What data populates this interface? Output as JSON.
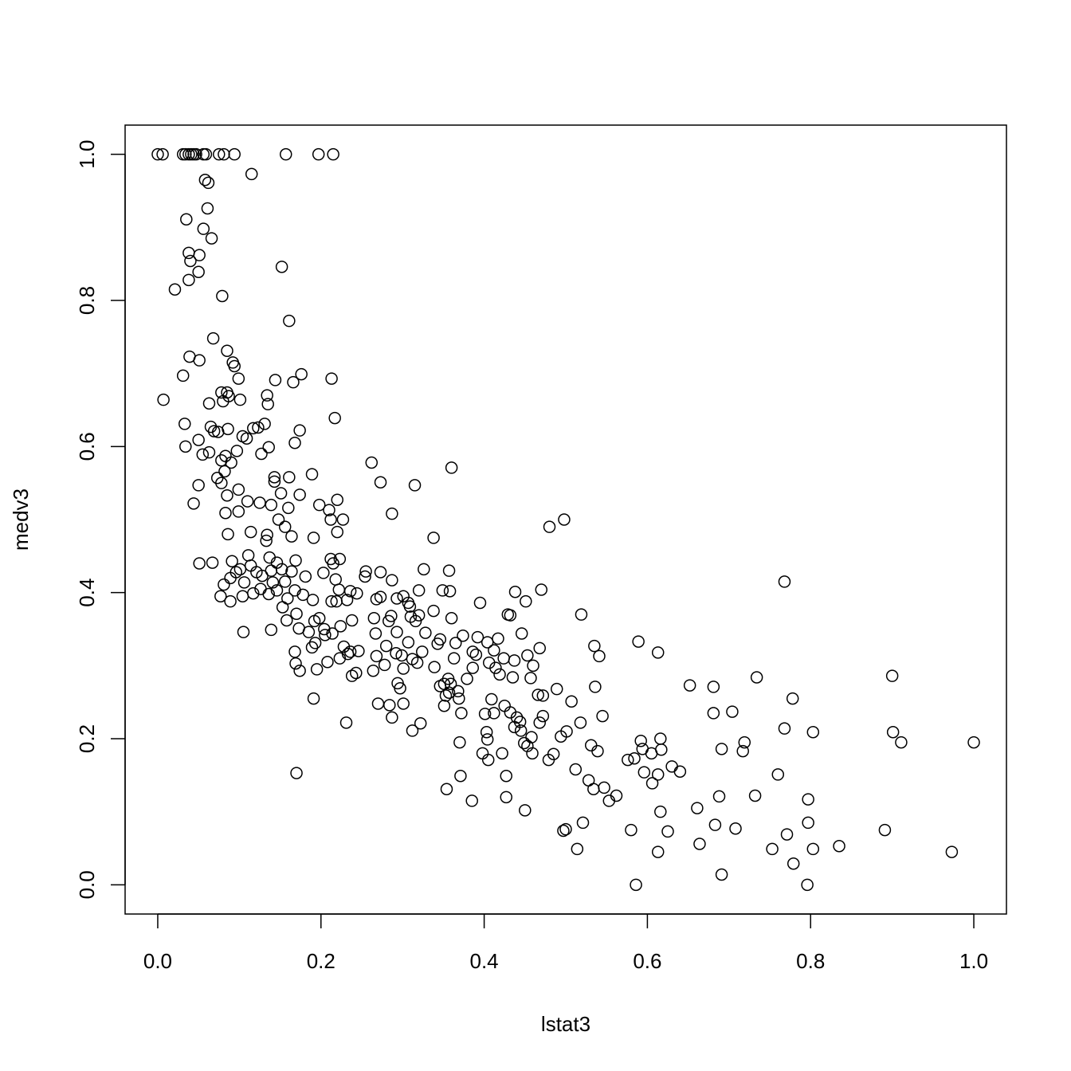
{
  "chart_data": {
    "type": "scatter",
    "xlabel": "lstat3",
    "ylabel": "medv3",
    "xlim": [
      -0.04,
      1.04
    ],
    "ylim": [
      -0.04,
      1.04
    ],
    "xticks": [
      {
        "value": 0,
        "label": "0.0"
      },
      0.2,
      0.4,
      0.6,
      0.8,
      {
        "value": 1,
        "label": "1.0"
      }
    ],
    "yticks": [
      {
        "value": 0,
        "label": "0.0"
      },
      0.2,
      0.4,
      0.6,
      0.8,
      {
        "value": 1,
        "label": "1.0"
      }
    ],
    "color": "#000000",
    "x": [
      0.0,
      0.006,
      0.031,
      0.034,
      0.038,
      0.041,
      0.044,
      0.047,
      0.056,
      0.059,
      0.075,
      0.081,
      0.094,
      0.157,
      0.197,
      0.215,
      0.115,
      0.058,
      0.062,
      0.061,
      0.056,
      0.035,
      0.066,
      0.038,
      0.051,
      0.04,
      0.152,
      0.05,
      0.038,
      0.021,
      0.079,
      0.161,
      0.068,
      0.085,
      0.039,
      0.051,
      0.092,
      0.094,
      0.031,
      0.176,
      0.099,
      0.213,
      0.144,
      0.166,
      0.078,
      0.085,
      0.087,
      0.134,
      0.101,
      0.007,
      0.135,
      0.08,
      0.063,
      0.217,
      0.131,
      0.033,
      0.123,
      0.117,
      0.065,
      0.069,
      0.086,
      0.074,
      0.174,
      0.104,
      0.109,
      0.05,
      0.168,
      0.034,
      0.136,
      0.097,
      0.127,
      0.063,
      0.055,
      0.083,
      0.078,
      0.262,
      0.09,
      0.36,
      0.082,
      0.073,
      0.143,
      0.161,
      0.189,
      0.143,
      0.078,
      0.273,
      0.315,
      0.05,
      0.099,
      0.151,
      0.174,
      0.085,
      0.22,
      0.11,
      0.125,
      0.044,
      0.198,
      0.139,
      0.16,
      0.21,
      0.099,
      0.083,
      0.287,
      0.148,
      0.227,
      0.498,
      0.212,
      0.48,
      0.156,
      0.114,
      0.086,
      0.22,
      0.134,
      0.164,
      0.338,
      0.191,
      0.133,
      0.051,
      0.111,
      0.137,
      0.223,
      0.212,
      0.091,
      0.169,
      0.215,
      0.146,
      0.067,
      0.114,
      0.101,
      0.152,
      0.139,
      0.096,
      0.121,
      0.255,
      0.273,
      0.357,
      0.326,
      0.203,
      0.164,
      0.181,
      0.128,
      0.254,
      0.768,
      0.287,
      0.089,
      0.106,
      0.141,
      0.156,
      0.218,
      0.222,
      0.236,
      0.081,
      0.126,
      0.146,
      0.168,
      0.244,
      0.273,
      0.301,
      0.438,
      0.47,
      0.32,
      0.349,
      0.358,
      0.395,
      0.451,
      0.077,
      0.104,
      0.117,
      0.136,
      0.089,
      0.159,
      0.19,
      0.219,
      0.232,
      0.268,
      0.293,
      0.307,
      0.309,
      0.178,
      0.213,
      0.338,
      0.432,
      0.519,
      0.429,
      0.36,
      0.32,
      0.286,
      0.31,
      0.17,
      0.198,
      0.153,
      0.158,
      0.192,
      0.238,
      0.265,
      0.283,
      0.316,
      0.173,
      0.185,
      0.204,
      0.374,
      0.392,
      0.446,
      0.105,
      0.139,
      0.224,
      0.205,
      0.214,
      0.267,
      0.293,
      0.328,
      0.417,
      0.404,
      0.346,
      0.343,
      0.365,
      0.535,
      0.589,
      0.28,
      0.307,
      0.189,
      0.193,
      0.168,
      0.228,
      0.236,
      0.246,
      0.324,
      0.386,
      0.412,
      0.613,
      0.541,
      0.453,
      0.468,
      0.268,
      0.299,
      0.312,
      0.233,
      0.208,
      0.169,
      0.223,
      0.292,
      0.318,
      0.363,
      0.39,
      0.406,
      0.424,
      0.437,
      0.174,
      0.195,
      0.339,
      0.386,
      0.414,
      0.419,
      0.46,
      0.457,
      0.264,
      0.278,
      0.301,
      0.243,
      0.238,
      0.379,
      0.356,
      0.435,
      0.536,
      0.359,
      0.351,
      0.357,
      0.489,
      0.652,
      0.681,
      0.734,
      0.9,
      0.466,
      0.346,
      0.353,
      0.368,
      0.369,
      0.294,
      0.297,
      0.191,
      0.409,
      0.425,
      0.432,
      0.27,
      0.284,
      0.301,
      0.507,
      0.472,
      0.351,
      0.372,
      0.518,
      0.287,
      0.322,
      0.231,
      0.437,
      0.444,
      0.44,
      0.412,
      0.401,
      0.545,
      0.472,
      0.468,
      0.681,
      0.704,
      0.778,
      0.768,
      0.803,
      0.901,
      0.911,
      1.0,
      0.501,
      0.312,
      0.403,
      0.445,
      0.458,
      0.592,
      0.616,
      0.719,
      0.691,
      0.717,
      0.594,
      0.617,
      0.531,
      0.539,
      0.494,
      0.37,
      0.404,
      0.398,
      0.405,
      0.422,
      0.449,
      0.453,
      0.459,
      0.485,
      0.479,
      0.605,
      0.576,
      0.584,
      0.63,
      0.64,
      0.596,
      0.613,
      0.76,
      0.606,
      0.512,
      0.528,
      0.17,
      0.371,
      0.427,
      0.354,
      0.534,
      0.547,
      0.562,
      0.553,
      0.688,
      0.732,
      0.797,
      0.385,
      0.427,
      0.661,
      0.45,
      0.616,
      0.521,
      0.683,
      0.797,
      0.5,
      0.497,
      0.58,
      0.625,
      0.708,
      0.771,
      0.891,
      0.664,
      0.835,
      0.753,
      0.803,
      0.514,
      0.613,
      0.973,
      0.779,
      0.691,
      0.586,
      0.796
    ],
    "values": [
      1.0,
      1.0,
      1.0,
      1.0,
      1.0,
      1.0,
      1.0,
      1.0,
      1.0,
      1.0,
      1.0,
      1.0,
      1.0,
      1.0,
      1.0,
      1.0,
      0.973,
      0.965,
      0.961,
      0.926,
      0.898,
      0.911,
      0.885,
      0.865,
      0.862,
      0.854,
      0.846,
      0.839,
      0.828,
      0.815,
      0.806,
      0.772,
      0.748,
      0.731,
      0.723,
      0.718,
      0.715,
      0.71,
      0.697,
      0.699,
      0.693,
      0.693,
      0.691,
      0.688,
      0.674,
      0.674,
      0.669,
      0.67,
      0.664,
      0.664,
      0.658,
      0.662,
      0.659,
      0.639,
      0.631,
      0.631,
      0.626,
      0.625,
      0.627,
      0.621,
      0.624,
      0.62,
      0.622,
      0.614,
      0.611,
      0.609,
      0.605,
      0.6,
      0.599,
      0.594,
      0.59,
      0.592,
      0.589,
      0.587,
      0.581,
      0.578,
      0.578,
      0.571,
      0.566,
      0.557,
      0.558,
      0.558,
      0.562,
      0.552,
      0.55,
      0.551,
      0.547,
      0.547,
      0.541,
      0.536,
      0.534,
      0.533,
      0.527,
      0.525,
      0.523,
      0.522,
      0.52,
      0.52,
      0.516,
      0.513,
      0.511,
      0.509,
      0.508,
      0.5,
      0.5,
      0.5,
      0.5,
      0.49,
      0.49,
      0.483,
      0.48,
      0.483,
      0.479,
      0.477,
      0.475,
      0.475,
      0.471,
      0.44,
      0.451,
      0.448,
      0.446,
      0.446,
      0.443,
      0.444,
      0.44,
      0.441,
      0.441,
      0.437,
      0.432,
      0.432,
      0.43,
      0.428,
      0.428,
      0.429,
      0.428,
      0.43,
      0.432,
      0.427,
      0.429,
      0.422,
      0.423,
      0.422,
      0.415,
      0.417,
      0.42,
      0.414,
      0.414,
      0.415,
      0.418,
      0.404,
      0.402,
      0.411,
      0.405,
      0.403,
      0.403,
      0.399,
      0.394,
      0.395,
      0.401,
      0.404,
      0.403,
      0.403,
      0.402,
      0.386,
      0.388,
      0.395,
      0.395,
      0.399,
      0.398,
      0.388,
      0.392,
      0.39,
      0.388,
      0.39,
      0.391,
      0.392,
      0.386,
      0.381,
      0.397,
      0.388,
      0.375,
      0.369,
      0.37,
      0.37,
      0.365,
      0.369,
      0.368,
      0.367,
      0.371,
      0.365,
      0.38,
      0.362,
      0.361,
      0.362,
      0.365,
      0.361,
      0.361,
      0.351,
      0.346,
      0.35,
      0.341,
      0.339,
      0.344,
      0.346,
      0.349,
      0.354,
      0.342,
      0.344,
      0.344,
      0.346,
      0.345,
      0.337,
      0.332,
      0.336,
      0.33,
      0.331,
      0.327,
      0.333,
      0.327,
      0.332,
      0.325,
      0.331,
      0.319,
      0.326,
      0.319,
      0.32,
      0.319,
      0.319,
      0.321,
      0.318,
      0.313,
      0.314,
      0.324,
      0.313,
      0.314,
      0.309,
      0.316,
      0.305,
      0.303,
      0.31,
      0.317,
      0.304,
      0.31,
      0.315,
      0.304,
      0.31,
      0.307,
      0.293,
      0.295,
      0.298,
      0.297,
      0.297,
      0.288,
      0.3,
      0.283,
      0.293,
      0.301,
      0.296,
      0.29,
      0.286,
      0.282,
      0.282,
      0.284,
      0.271,
      0.275,
      0.275,
      0.263,
      0.268,
      0.273,
      0.271,
      0.284,
      0.286,
      0.26,
      0.272,
      0.259,
      0.265,
      0.255,
      0.276,
      0.269,
      0.255,
      0.254,
      0.245,
      0.236,
      0.248,
      0.246,
      0.248,
      0.251,
      0.259,
      0.245,
      0.235,
      0.222,
      0.229,
      0.221,
      0.222,
      0.216,
      0.223,
      0.229,
      0.235,
      0.234,
      0.231,
      0.231,
      0.222,
      0.235,
      0.237,
      0.255,
      0.214,
      0.209,
      0.209,
      0.195,
      0.195,
      0.21,
      0.211,
      0.209,
      0.211,
      0.202,
      0.197,
      0.2,
      0.195,
      0.186,
      0.183,
      0.186,
      0.185,
      0.191,
      0.183,
      0.203,
      0.195,
      0.199,
      0.18,
      0.171,
      0.18,
      0.194,
      0.19,
      0.18,
      0.179,
      0.171,
      0.18,
      0.171,
      0.173,
      0.162,
      0.155,
      0.154,
      0.151,
      0.151,
      0.139,
      0.158,
      0.143,
      0.153,
      0.149,
      0.149,
      0.131,
      0.131,
      0.133,
      0.122,
      0.115,
      0.121,
      0.122,
      0.117,
      0.115,
      0.12,
      0.105,
      0.102,
      0.1,
      0.085,
      0.082,
      0.085,
      0.076,
      0.074,
      0.075,
      0.073,
      0.077,
      0.069,
      0.075,
      0.056,
      0.053,
      0.049,
      0.049,
      0.049,
      0.045,
      0.045,
      0.029,
      0.014,
      0.0,
      0.0
    ]
  }
}
